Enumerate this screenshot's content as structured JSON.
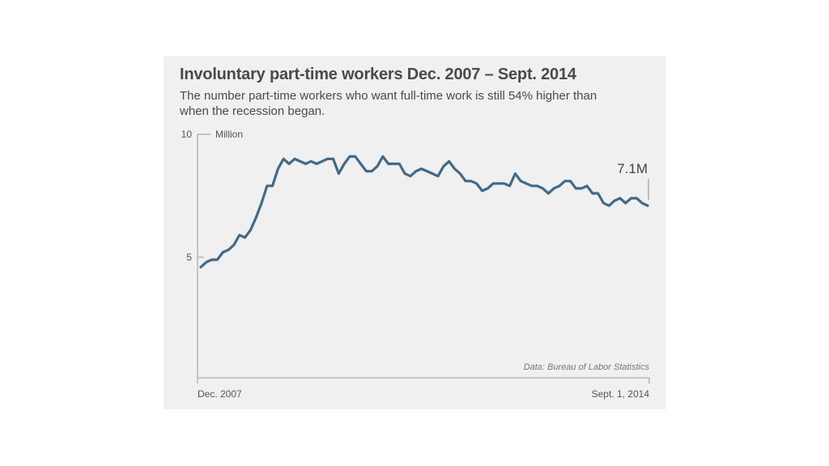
{
  "chart_data": {
    "type": "line",
    "title": "Involuntary part-time workers Dec. 2007 – Sept. 2014",
    "subtitle": "The number part-time workers who want full-time work is still 54% higher than when the recession began.",
    "ylabel": "Million",
    "ylim": [
      0,
      10
    ],
    "yticks": [
      {
        "value": 10,
        "label": "10"
      },
      {
        "value": 5,
        "label": "5"
      }
    ],
    "xlabels": [
      "Dec. 2007",
      "Sept. 1, 2014"
    ],
    "last_value_label": "7.1M",
    "source": "Data: Bureau of Labor Statistics",
    "series_color": "#3f6a8c",
    "series": [
      {
        "values": [
          4.6,
          4.8,
          4.9,
          4.9,
          5.2,
          5.3,
          5.5,
          5.9,
          5.8,
          6.1,
          6.6,
          7.2,
          7.9,
          7.9,
          8.6,
          9.0,
          8.8,
          9.0,
          8.9,
          8.8,
          8.9,
          8.8,
          8.9,
          9.0,
          9.0,
          8.4,
          8.8,
          9.1,
          9.1,
          8.8,
          8.5,
          8.5,
          8.7,
          9.1,
          8.8,
          8.8,
          8.8,
          8.4,
          8.3,
          8.5,
          8.6,
          8.5,
          8.4,
          8.3,
          8.7,
          8.9,
          8.6,
          8.4,
          8.1,
          8.1,
          8.0,
          7.7,
          7.8,
          8.0,
          8.0,
          8.0,
          7.9,
          8.4,
          8.1,
          8.0,
          7.9,
          7.9,
          7.8,
          7.6,
          7.8,
          7.9,
          8.1,
          8.1,
          7.8,
          7.8,
          7.9,
          7.6,
          7.6,
          7.2,
          7.1,
          7.3,
          7.4,
          7.2,
          7.4,
          7.4,
          7.2,
          7.1
        ]
      }
    ]
  }
}
